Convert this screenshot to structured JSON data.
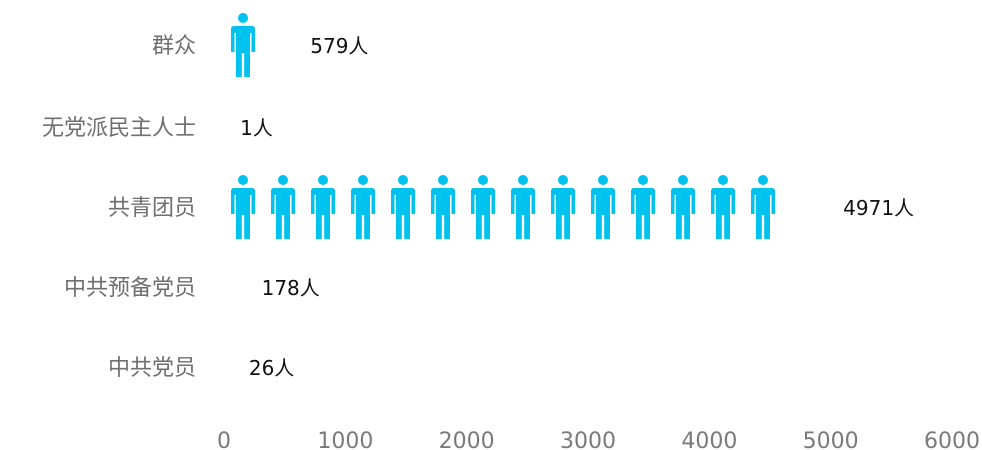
{
  "chart_data": {
    "type": "bar",
    "orientation": "horizontal",
    "style": "pictograph",
    "icon": "person-icon",
    "icon_unit": 334,
    "categories": [
      "群众",
      "无党派民主人士",
      "共青团员",
      "中共预备党员",
      "中共党员"
    ],
    "values": [
      579,
      1,
      4971,
      178,
      26
    ],
    "value_labels": [
      "579人",
      "1人",
      "4971人",
      "178人",
      "26人"
    ],
    "xlim": [
      0,
      6000
    ],
    "xticks": [
      "0",
      "1000",
      "2000",
      "3000",
      "4000",
      "5000",
      "6000"
    ],
    "xtick_values": [
      0,
      1000,
      2000,
      3000,
      4000,
      5000,
      6000
    ],
    "grid": false,
    "colors": {
      "icon": "#00c2ef",
      "category_text": "#6f6f6f",
      "tick_text": "#7a7a7a",
      "value_text": "#111111"
    }
  }
}
